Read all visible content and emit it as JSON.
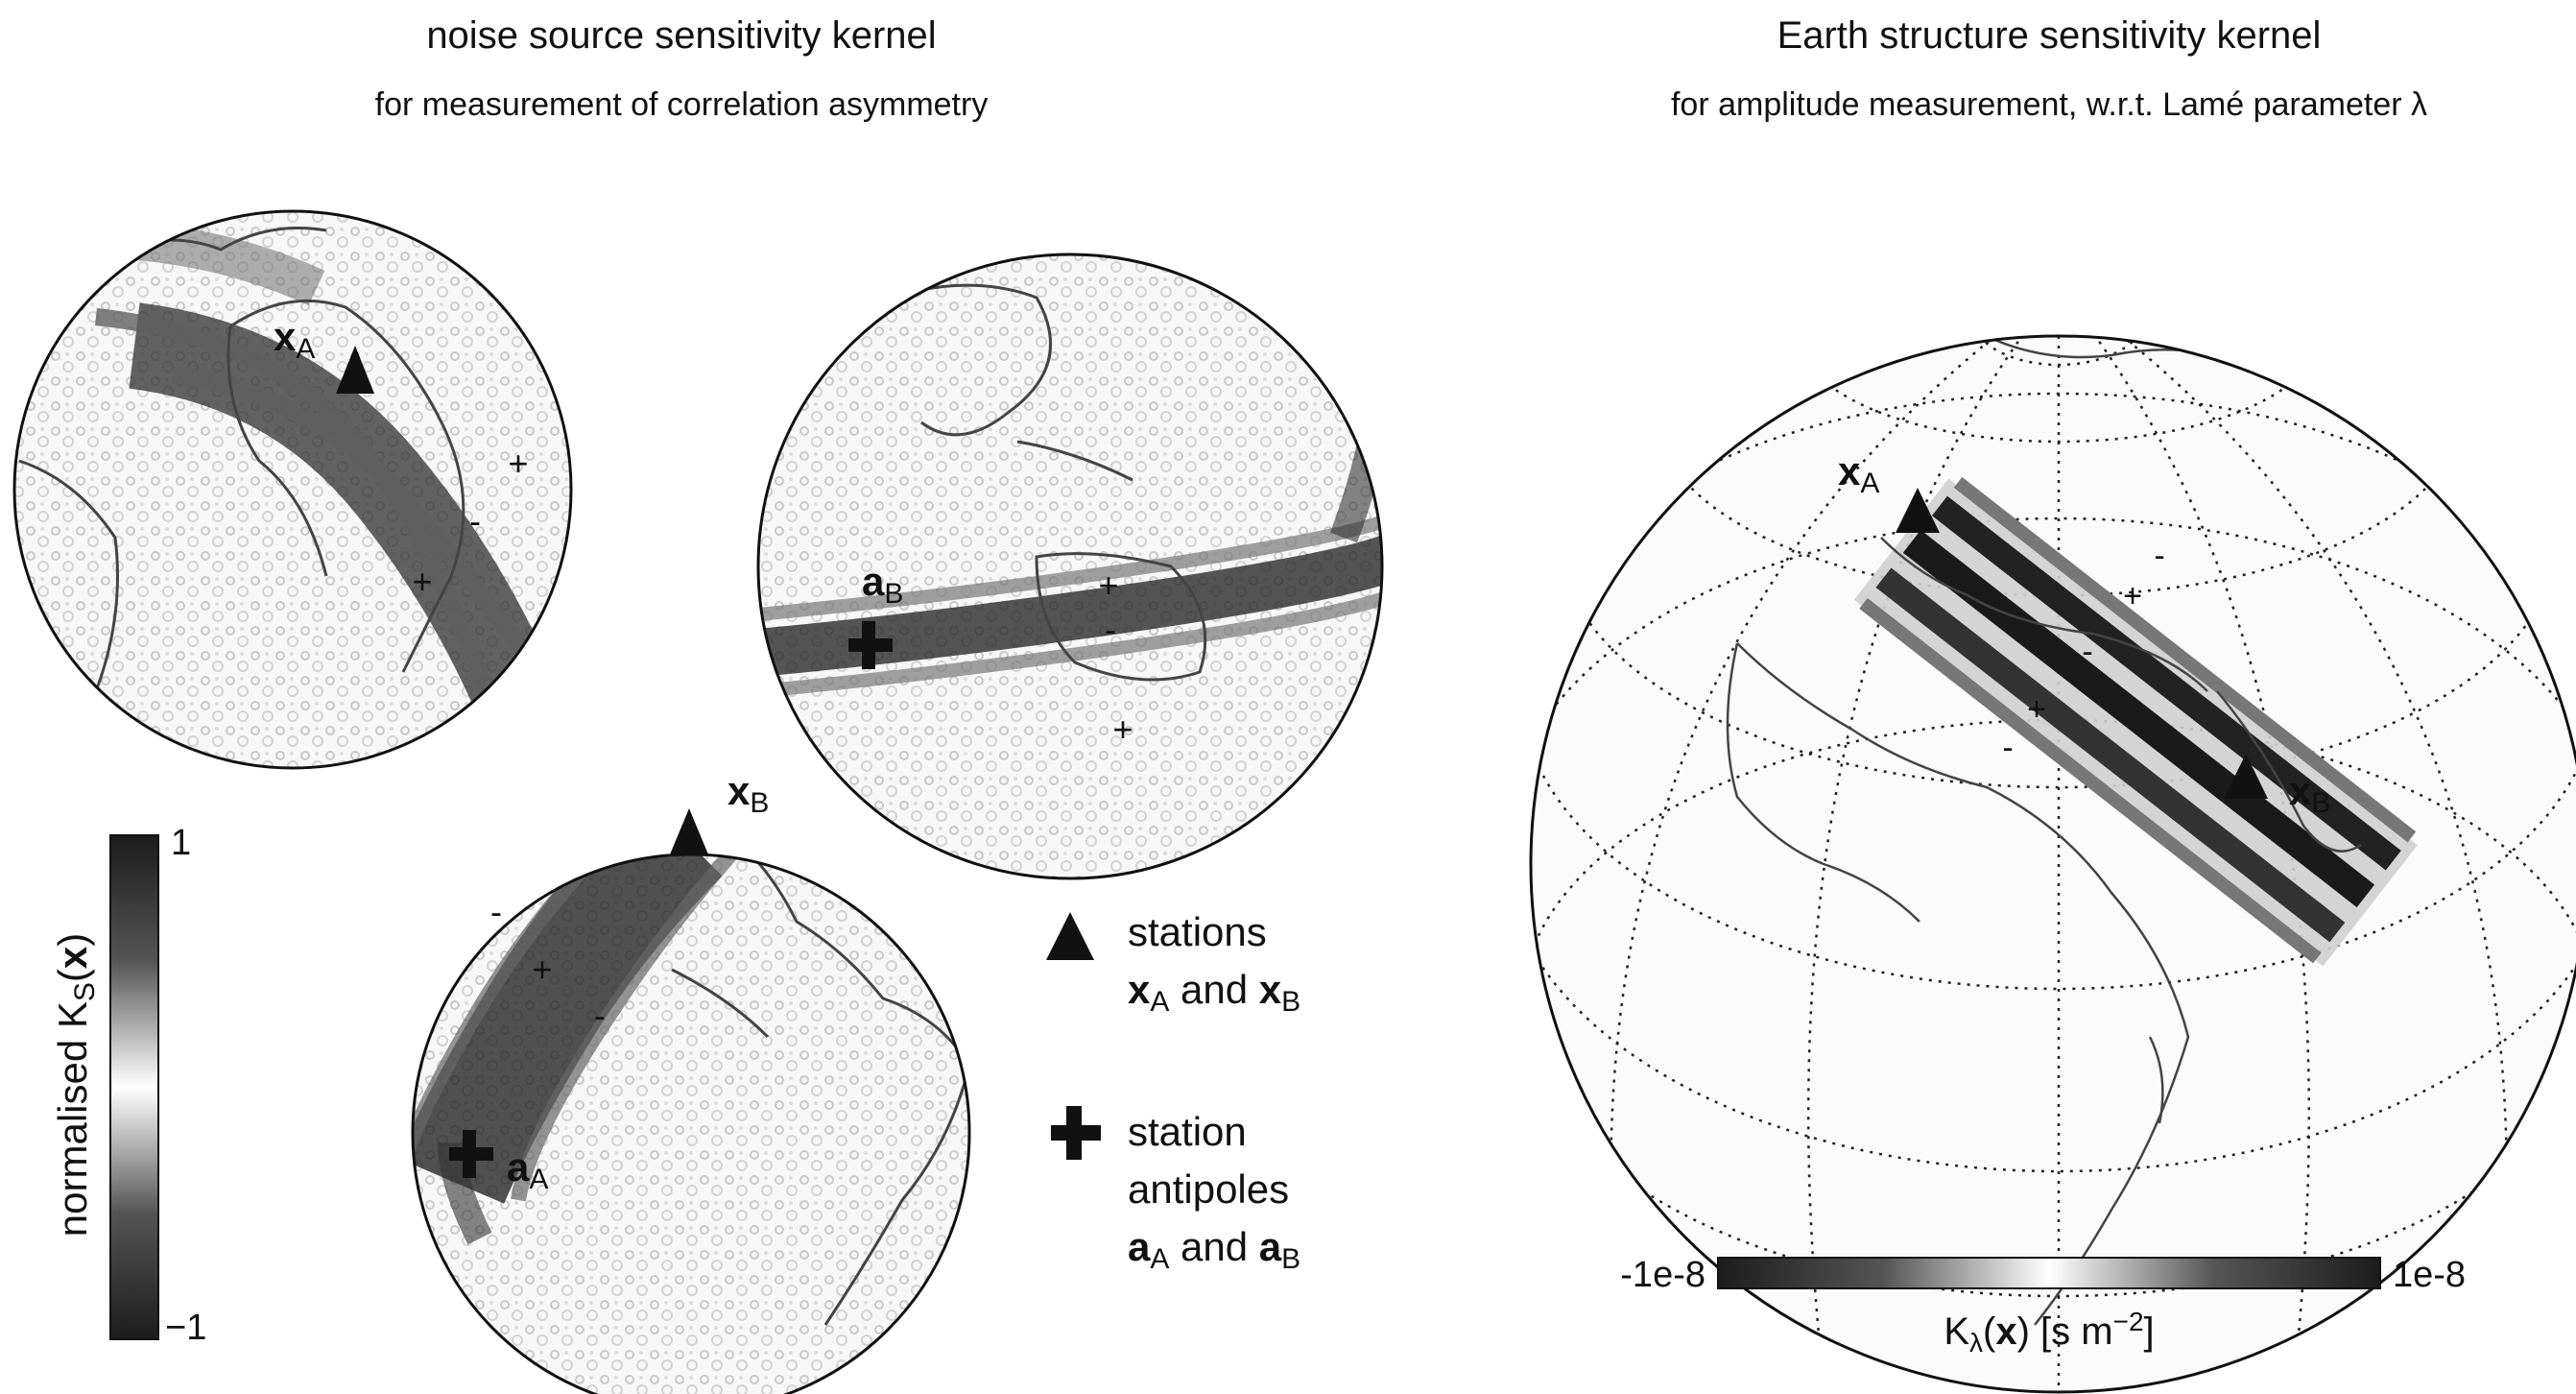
{
  "left_panel": {
    "title": "noise source sensitivity kernel",
    "subtitle": "for measurement of correlation asymmetry",
    "globe_labels": {
      "x_a": "x",
      "x_a_sub": "A",
      "x_b": "x",
      "x_b_sub": "B",
      "a_a": "a",
      "a_a_sub": "A",
      "a_b": "a",
      "a_b_sub": "B"
    },
    "sign_plus": "+",
    "sign_minus": "-",
    "colorbar": {
      "label": "normalised K",
      "label_sub": "S",
      "label_arg": "x",
      "max": "1",
      "min": "−1"
    },
    "legend": {
      "stations_line1": "stations",
      "stations_line2_a": "x",
      "stations_line2_a_sub": "A",
      "stations_and": " and ",
      "stations_line2_b": "x",
      "stations_line2_b_sub": "B",
      "antipoles_line1": "station",
      "antipoles_line2": "antipoles",
      "antipoles_line3_a": "a",
      "antipoles_line3_a_sub": "A",
      "antipoles_and": " and ",
      "antipoles_line3_b": "a",
      "antipoles_line3_b_sub": "B"
    }
  },
  "right_panel": {
    "title": "Earth structure sensitivity kernel",
    "subtitle": "for amplitude measurement, w.r.t. Lamé parameter λ",
    "labels": {
      "x_a": "x",
      "x_a_sub": "A",
      "x_b": "x",
      "x_b_sub": "B"
    },
    "sign_plus": "+",
    "sign_minus": "-",
    "colorbar": {
      "min": "-1e-8",
      "max": "1e-8",
      "label_k": "K",
      "label_sub": "λ",
      "label_rest_open": "(",
      "label_x": "x",
      "label_rest_close": ") [s m",
      "label_sup": "−2",
      "label_end": "]"
    }
  },
  "colors": {
    "kernel_dark": "#1a1a1a",
    "kernel_light": "#ffffff",
    "coastline": "#444444"
  }
}
